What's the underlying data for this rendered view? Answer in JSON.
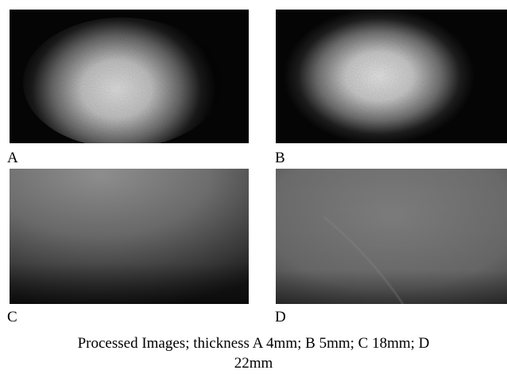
{
  "panels": [
    {
      "id": "A",
      "label": "A"
    },
    {
      "id": "B",
      "label": "B"
    },
    {
      "id": "C",
      "label": "C"
    },
    {
      "id": "D",
      "label": "D"
    }
  ],
  "caption": {
    "line1": "Processed Images; thickness A 4mm; B 5mm; C 18mm; D",
    "line2": "22mm"
  }
}
